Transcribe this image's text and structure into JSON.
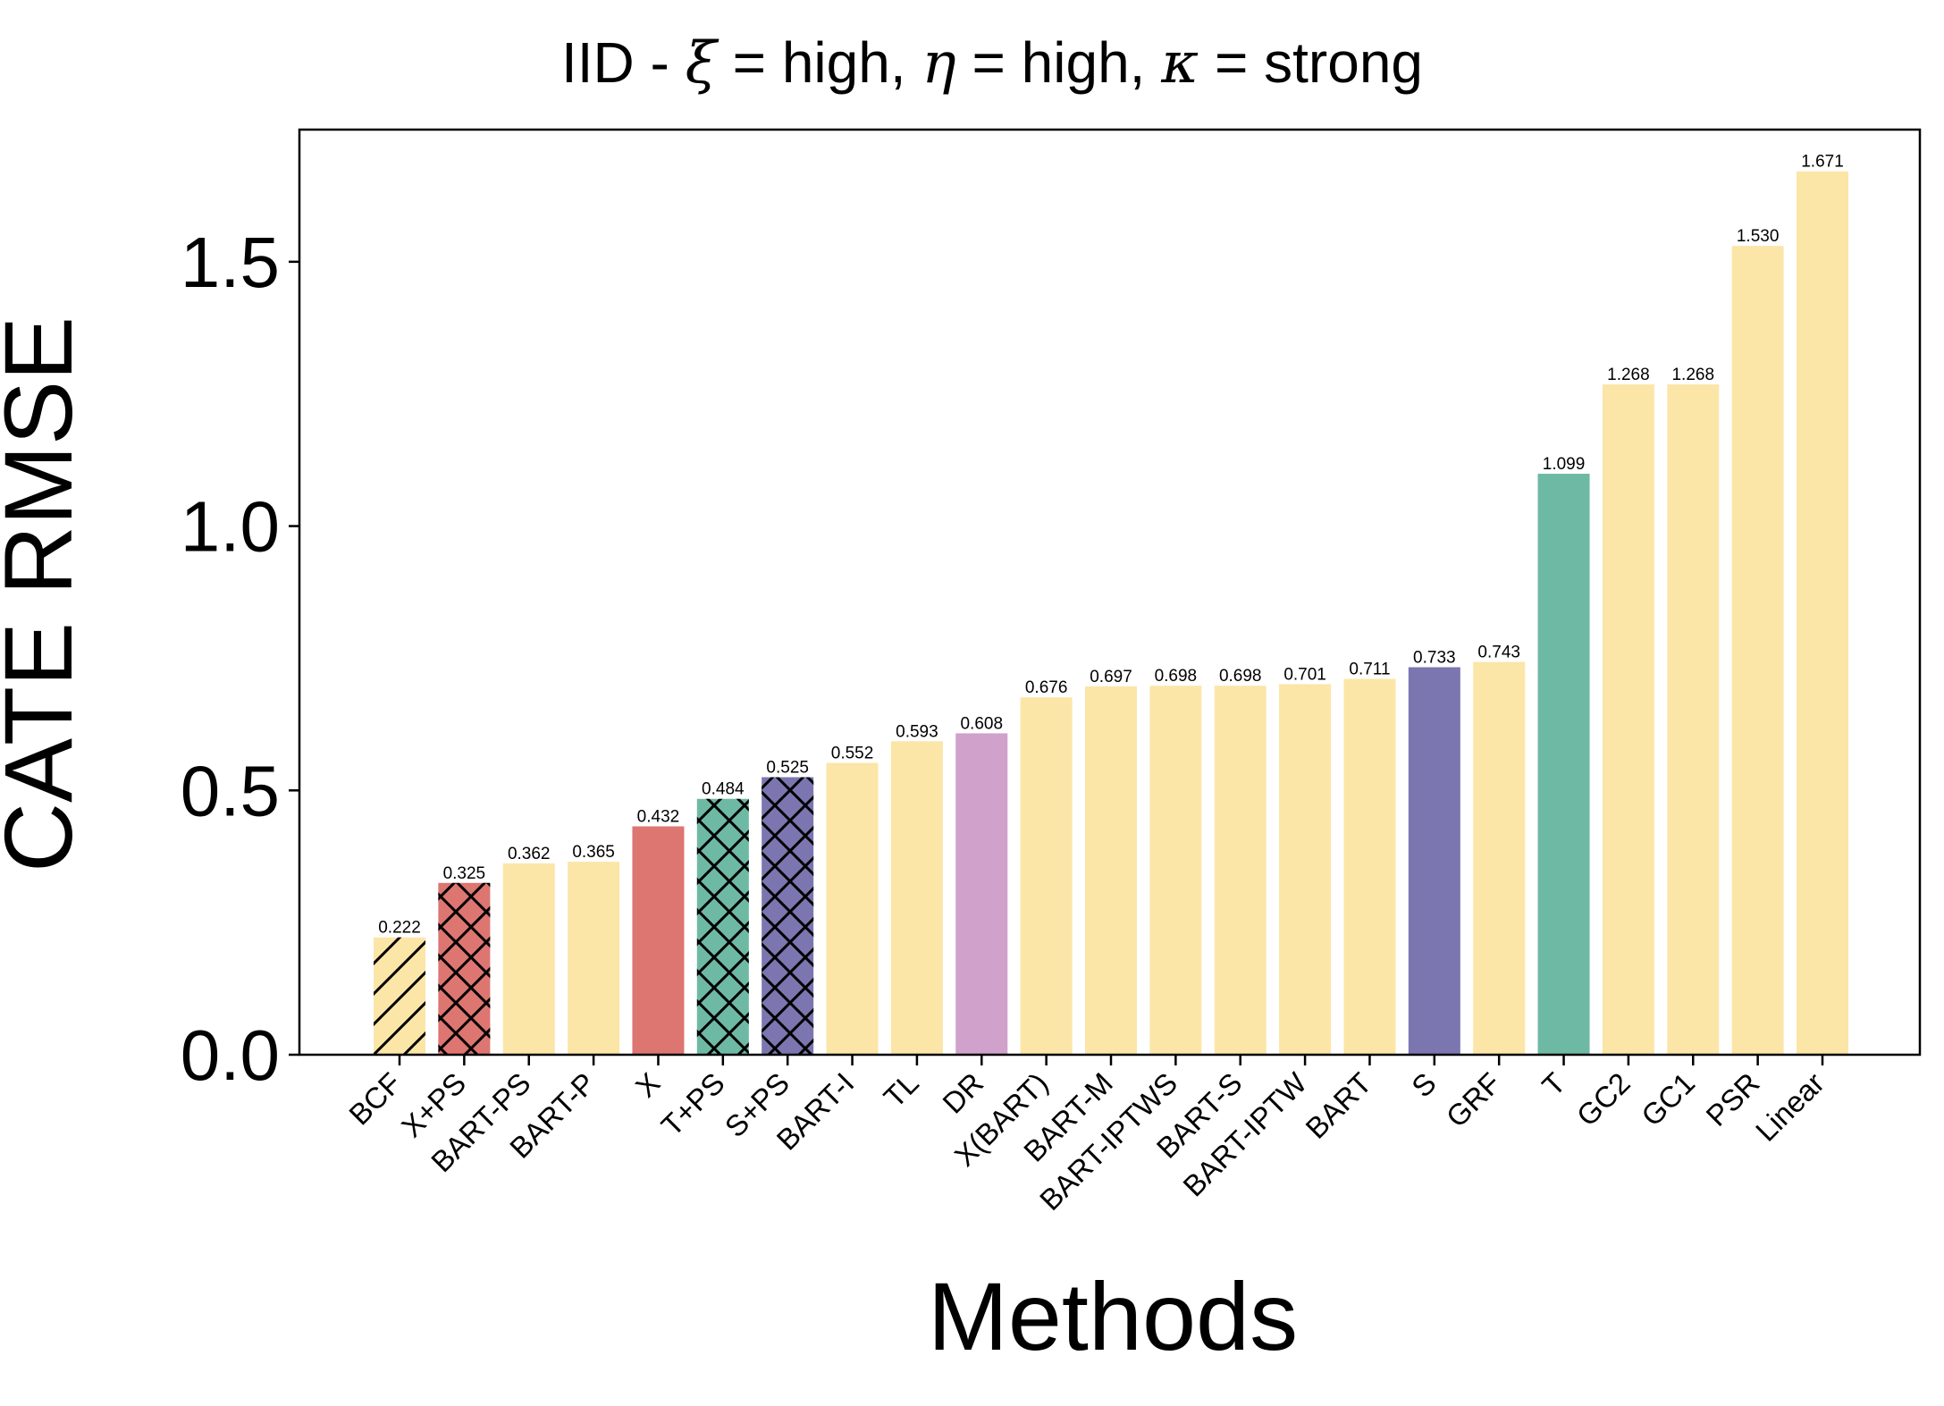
{
  "chart_data": {
    "type": "bar",
    "title_parts": {
      "prefix": "IID - ",
      "xi_symbol": "ξ",
      "xi_value": " = high, ",
      "eta_symbol": "η",
      "eta_value": " = high, ",
      "kappa_symbol": "κ",
      "kappa_value": " = strong"
    },
    "xlabel": "Methods",
    "ylabel": "CATE RMSE",
    "ylim": [
      0,
      1.75
    ],
    "yticks": [
      0.0,
      0.5,
      1.0,
      1.5
    ],
    "ytick_labels": [
      "0.0",
      "0.5",
      "1.0",
      "1.5"
    ],
    "grid": false,
    "legend": "none",
    "categories": [
      "BCF",
      "X+PS",
      "BART-PS",
      "BART-P",
      "X",
      "T+PS",
      "S+PS",
      "BART-I",
      "TL",
      "DR",
      "X(BART)",
      "BART-M",
      "BART-IPTWS",
      "BART-S",
      "BART-IPTW",
      "BART",
      "S",
      "GRF",
      "T",
      "GC2",
      "GC1",
      "PSR",
      "Linear"
    ],
    "values": [
      0.222,
      0.325,
      0.362,
      0.365,
      0.432,
      0.484,
      0.525,
      0.552,
      0.593,
      0.608,
      0.676,
      0.697,
      0.698,
      0.698,
      0.701,
      0.711,
      0.733,
      0.743,
      1.099,
      1.268,
      1.268,
      1.53,
      1.671
    ],
    "value_labels": [
      "0.222",
      "0.325",
      "0.362",
      "0.365",
      "0.432",
      "0.484",
      "0.525",
      "0.552",
      "0.593",
      "0.608",
      "0.676",
      "0.697",
      "0.698",
      "0.698",
      "0.701",
      "0.711",
      "0.733",
      "0.743",
      "1.099",
      "1.268",
      "1.268",
      "1.530",
      "1.671"
    ],
    "bar_colors": [
      "#fbe6a8",
      "#dd7571",
      "#fbe6a8",
      "#fbe6a8",
      "#dd7571",
      "#6eb9a3",
      "#7b75b0",
      "#fbe6a8",
      "#fbe6a8",
      "#d0a1cb",
      "#fbe6a8",
      "#fbe6a8",
      "#fbe6a8",
      "#fbe6a8",
      "#fbe6a8",
      "#fbe6a8",
      "#7b75b0",
      "#fbe6a8",
      "#6eb9a3",
      "#fbe6a8",
      "#fbe6a8",
      "#fbe6a8",
      "#fbe6a8"
    ],
    "bar_hatches": [
      "diagonal",
      "crosshatch",
      "none",
      "none",
      "none",
      "crosshatch",
      "crosshatch",
      "none",
      "none",
      "none",
      "none",
      "none",
      "none",
      "none",
      "none",
      "none",
      "none",
      "none",
      "none",
      "none",
      "none",
      "none",
      "none"
    ]
  }
}
